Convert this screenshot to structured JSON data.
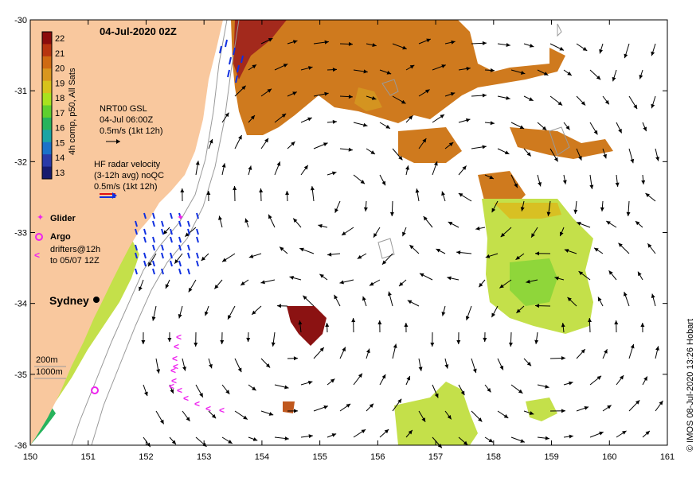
{
  "title": "04-Jul-2020 02Z",
  "credit": "© IMOS 08-Jul-2020 13:26 Hobart",
  "colorbar": {
    "label": "4h comp, p50, All Sats",
    "ticks": [
      "22",
      "21",
      "20",
      "19",
      "18",
      "17",
      "16",
      "15",
      "14",
      "13"
    ],
    "colors": [
      "#8b0c0c",
      "#b8340f",
      "#cf6a12",
      "#d9961e",
      "#d7c21a",
      "#a9e21e",
      "#5fcf2e",
      "#27b35c",
      "#1aa4a4",
      "#1b72c9",
      "#2a3aa8",
      "#171b6e"
    ]
  },
  "axes": {
    "x_ticks": [
      "150",
      "151",
      "152",
      "153",
      "154",
      "155",
      "156",
      "157",
      "158",
      "159",
      "160",
      "161"
    ],
    "y_ticks": [
      "-30",
      "-31",
      "-32",
      "-33",
      "-34",
      "-35",
      "-36"
    ],
    "xlim": [
      150,
      161
    ],
    "ylim": [
      -36,
      -30
    ]
  },
  "legend": {
    "gsl": [
      "NRT00 GSL",
      "04-Jul 06:00Z",
      "0.5m/s (1kt 12h)"
    ],
    "hf": [
      "HF radar velocity",
      "(3-12h avg) noQC",
      "0.5m/s (1kt 12h)"
    ],
    "glider": "Glider",
    "argo": "Argo",
    "drifters": [
      "drifters@12h",
      "to 05/07 12Z"
    ],
    "depth": [
      "200m",
      "1000m"
    ]
  },
  "places": {
    "sydney": "Sydney"
  },
  "colors": {
    "land": "#f9c89e",
    "glider": "#ee22ee",
    "hf_radar": "#1030e0",
    "drifter": "#ee22ee"
  }
}
